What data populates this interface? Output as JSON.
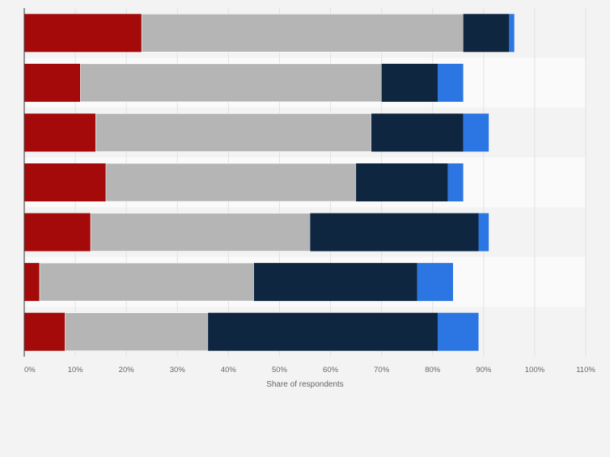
{
  "chart_data": {
    "type": "bar",
    "orientation": "horizontal",
    "stacked": true,
    "title": "",
    "xlabel": "Share of respondents",
    "ylabel": "",
    "xlim": [
      0,
      110
    ],
    "x_ticks": [
      "0%",
      "10%",
      "20%",
      "30%",
      "40%",
      "50%",
      "60%",
      "70%",
      "80%",
      "90%",
      "100%",
      "110%"
    ],
    "grid": true,
    "legend": "none",
    "categories": [
      "",
      "",
      "",
      "",
      "",
      "",
      ""
    ],
    "series": [
      {
        "color": "#a50a0a",
        "values": [
          23,
          11,
          14,
          16,
          13,
          3,
          8
        ]
      },
      {
        "color": "#b5b5b5",
        "values": [
          63,
          59,
          54,
          49,
          43,
          42,
          28
        ]
      },
      {
        "color": "#0e2640",
        "values": [
          9,
          11,
          18,
          18,
          33,
          32,
          45
        ]
      },
      {
        "color": "#2b76e2",
        "values": [
          1,
          5,
          5,
          3,
          2,
          7,
          8
        ]
      }
    ]
  }
}
